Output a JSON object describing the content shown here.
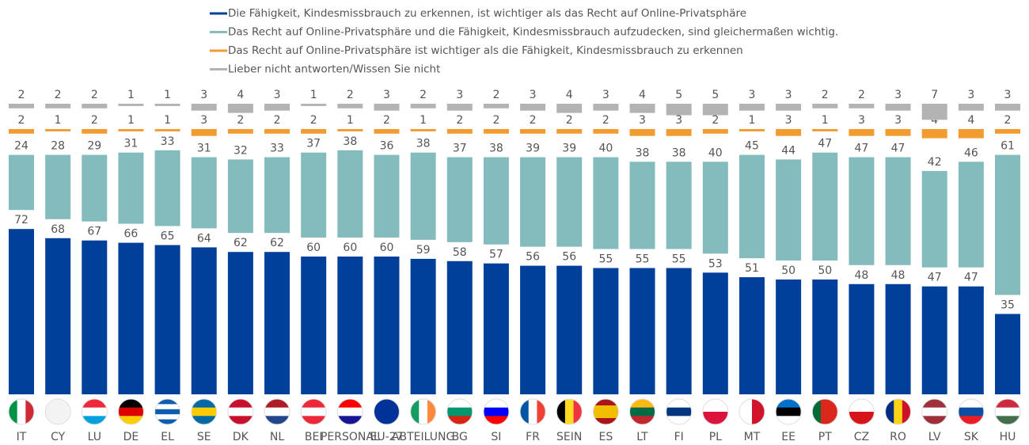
{
  "chart_data": {
    "type": "bar",
    "categories": [
      "IT",
      "CY",
      "LU",
      "DE",
      "EL",
      "SE",
      "DK",
      "NL",
      "BEI",
      "PERSONAL",
      "EU-27",
      "ABTEILUNG",
      "BG",
      "SI",
      "FR",
      "SEIN",
      "ES",
      "LT",
      "FI",
      "PL",
      "MT",
      "EE",
      "PT",
      "CZ",
      "RO",
      "LV",
      "SK",
      "HU"
    ],
    "series": [
      {
        "name": "Die Fähigkeit, Kindesmissbrauch zu erkennen, ist wichtiger als das Recht auf Online-Privatsphäre",
        "color": "#00409a",
        "values": [
          72,
          68,
          67,
          66,
          65,
          64,
          62,
          62,
          60,
          60,
          60,
          59,
          58,
          57,
          56,
          56,
          55,
          55,
          55,
          53,
          51,
          50,
          50,
          48,
          48,
          47,
          47,
          35
        ]
      },
      {
        "name": "Das Recht auf Online-Privatsphäre und die Fähigkeit, Kindesmissbrauch aufzudecken, sind gleichermaßen wichtig.",
        "color": "#84bcbd",
        "values": [
          24,
          28,
          29,
          31,
          33,
          31,
          32,
          33,
          37,
          38,
          36,
          38,
          37,
          38,
          39,
          39,
          40,
          38,
          38,
          40,
          45,
          44,
          47,
          47,
          47,
          42,
          46,
          61
        ]
      },
      {
        "name": "Das Recht auf Online-Privatsphäre ist wichtiger als die Fähigkeit, Kindesmissbrauch zu erkennen",
        "color": "#f29b30",
        "values": [
          2,
          1,
          2,
          1,
          1,
          3,
          2,
          2,
          2,
          1,
          2,
          1,
          2,
          2,
          2,
          2,
          2,
          3,
          3,
          2,
          1,
          3,
          1,
          3,
          3,
          4,
          4,
          2
        ]
      },
      {
        "name": "Lieber nicht antworten/Wissen Sie nicht",
        "color": "#b3b3b3",
        "values": [
          2,
          2,
          2,
          1,
          1,
          3,
          4,
          3,
          1,
          2,
          3,
          2,
          3,
          2,
          3,
          4,
          3,
          4,
          5,
          5,
          3,
          3,
          2,
          2,
          3,
          7,
          3,
          3
        ]
      }
    ]
  }
}
